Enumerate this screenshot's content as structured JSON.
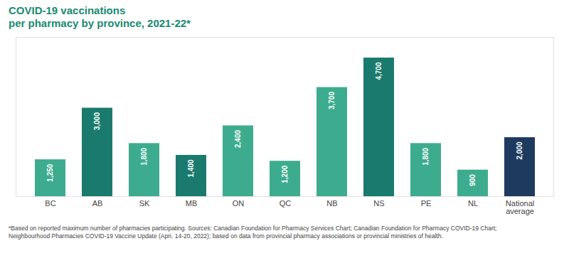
{
  "chart_data": {
    "type": "bar",
    "title": "COVID-19 vaccinations\nper pharmacy by province, 2021-22*",
    "footnote": "*Based on reported maximum number of pharmacies participating. Sources: Canadian Foundation for Pharmacy Services Chart; Canadian Foundation for Pharmacy COVID-19 Chart;\nNeighbourhood Pharmacies COVID-19 Vaccine Update (Apri. 14-20, 2022); based on data from provincial pharmacy associations or provincial ministries of health.",
    "categories": [
      "BC",
      "AB",
      "SK",
      "MB",
      "ON",
      "QC",
      "NB",
      "NS",
      "PE",
      "NL",
      "National\naverage"
    ],
    "values": [
      1250,
      3000,
      1800,
      1400,
      2400,
      1200,
      3700,
      4700,
      1800,
      900,
      2000
    ],
    "value_labels": [
      "1,250",
      "3,000",
      "1,800",
      "1,400",
      "2,400",
      "1,200",
      "3,700",
      "4,700",
      "1,800",
      "900",
      "2,000"
    ],
    "colors": [
      "#3dac8e",
      "#1a7a6e",
      "#3dac8e",
      "#1a7a6e",
      "#3dac8e",
      "#3dac8e",
      "#3dac8e",
      "#1a7a6e",
      "#3dac8e",
      "#3dac8e",
      "#1e3a5f"
    ],
    "ylim": [
      0,
      5400
    ],
    "data_labels": true,
    "tick_labels": "x",
    "grid": false
  }
}
